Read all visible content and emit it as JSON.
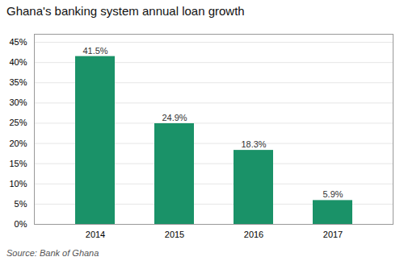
{
  "chart_data": {
    "type": "bar",
    "title": "Ghana's banking system annual loan growth",
    "categories": [
      "2014",
      "2015",
      "2016",
      "2017"
    ],
    "values": [
      41.5,
      24.9,
      18.3,
      5.9
    ],
    "value_labels": [
      "41.5%",
      "24.9%",
      "18.3%",
      "5.9%"
    ],
    "data_labels": true,
    "color": "#1a9268",
    "ylim": [
      0,
      47
    ],
    "yticks": [
      {
        "value": 0,
        "label": "0%"
      },
      {
        "value": 5,
        "label": "5%"
      },
      {
        "value": 10,
        "label": "10%"
      },
      {
        "value": 15,
        "label": "15%"
      },
      {
        "value": 20,
        "label": "20%"
      },
      {
        "value": 25,
        "label": "25%"
      },
      {
        "value": 30,
        "label": "30%"
      },
      {
        "value": 35,
        "label": "35%"
      },
      {
        "value": 40,
        "label": "40%"
      },
      {
        "value": 45,
        "label": "45%"
      }
    ],
    "grid": true,
    "annotations": [
      "Source: Bank of Ghana"
    ]
  }
}
